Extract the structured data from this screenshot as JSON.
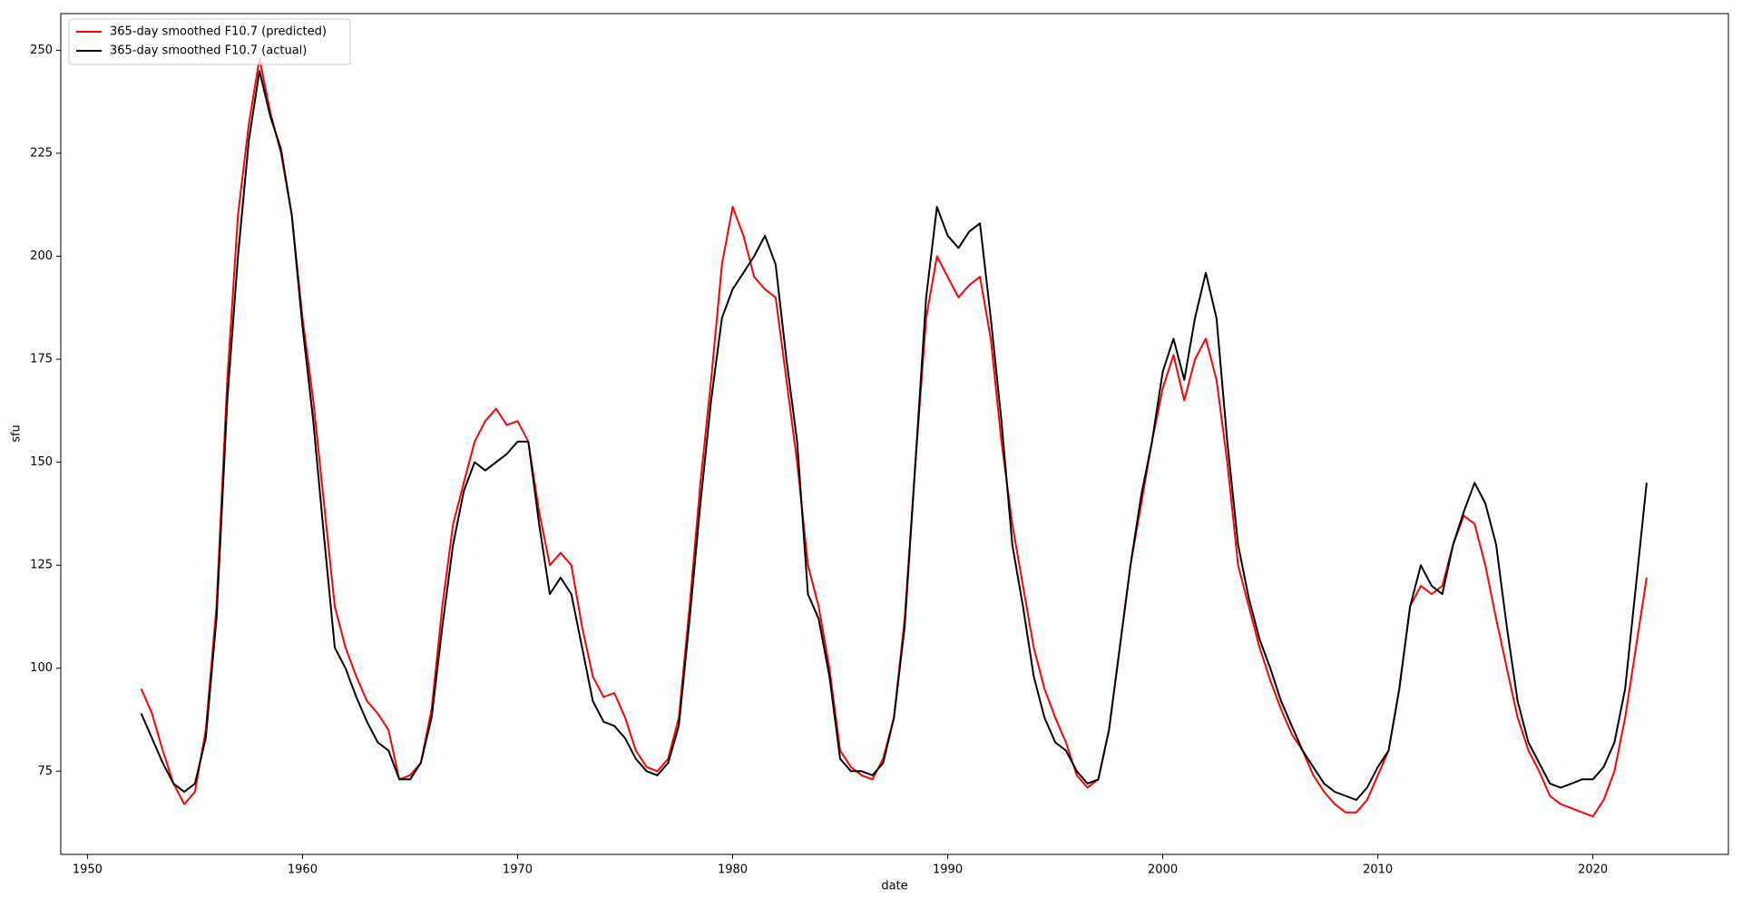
{
  "chart_data": {
    "type": "line",
    "xlabel": "date",
    "ylabel": "sfu",
    "xlim": [
      1948.76,
      2026.3
    ],
    "ylim": [
      54.8,
      258.9
    ],
    "xticks": [
      1950,
      1960,
      1970,
      1980,
      1990,
      2000,
      2010,
      2020
    ],
    "yticks": [
      75,
      100,
      125,
      150,
      175,
      200,
      225,
      250
    ],
    "legend": "upper left",
    "grid": false,
    "x": [
      1952.5,
      1953,
      1953.5,
      1954,
      1954.5,
      1955,
      1955.5,
      1956,
      1956.5,
      1957,
      1957.5,
      1958,
      1958.5,
      1959,
      1959.5,
      1960,
      1960.5,
      1961,
      1961.5,
      1962,
      1962.5,
      1963,
      1963.5,
      1964,
      1964.5,
      1965,
      1965.5,
      1966,
      1966.5,
      1967,
      1967.5,
      1968,
      1968.5,
      1969,
      1969.5,
      1970,
      1970.5,
      1971,
      1971.5,
      1972,
      1972.5,
      1973,
      1973.5,
      1974,
      1974.5,
      1975,
      1975.5,
      1976,
      1976.5,
      1977,
      1977.5,
      1978,
      1978.5,
      1979,
      1979.5,
      1980,
      1980.5,
      1981,
      1981.5,
      1982,
      1982.5,
      1983,
      1983.5,
      1984,
      1984.5,
      1985,
      1985.5,
      1986,
      1986.5,
      1987,
      1987.5,
      1988,
      1988.5,
      1989,
      1989.5,
      1990,
      1990.5,
      1991,
      1991.5,
      1992,
      1992.5,
      1993,
      1993.5,
      1994,
      1994.5,
      1995,
      1995.5,
      1996,
      1996.5,
      1997,
      1997.5,
      1998,
      1998.5,
      1999,
      1999.5,
      2000,
      2000.5,
      2001,
      2001.5,
      2002,
      2002.5,
      2003,
      2003.5,
      2004,
      2004.5,
      2005,
      2005.5,
      2006,
      2006.5,
      2007,
      2007.5,
      2008,
      2008.5,
      2009,
      2009.5,
      2010,
      2010.5,
      2011,
      2011.5,
      2012,
      2012.5,
      2013,
      2013.5,
      2014,
      2014.5,
      2015,
      2015.5,
      2016,
      2016.5,
      2017,
      2017.5,
      2018,
      2018.5,
      2019,
      2019.5,
      2020,
      2020.5,
      2021,
      2021.5,
      2022,
      2022.5
    ],
    "series": [
      {
        "name": "365-day smoothed F10.7 (predicted)",
        "color": "#ff0000",
        "values": [
          95,
          89,
          80,
          72,
          67,
          70,
          85,
          115,
          170,
          210,
          232,
          248,
          235,
          225,
          210,
          185,
          165,
          140,
          115,
          105,
          98,
          92,
          89,
          85,
          73,
          74,
          77,
          90,
          115,
          135,
          145,
          155,
          160,
          163,
          159,
          160,
          155,
          138,
          125,
          128,
          125,
          110,
          98,
          93,
          94,
          88,
          80,
          76,
          75,
          78,
          88,
          115,
          145,
          170,
          198,
          212,
          205,
          195,
          192,
          190,
          170,
          150,
          125,
          115,
          100,
          80,
          76,
          74,
          73,
          78,
          88,
          112,
          150,
          185,
          200,
          195,
          190,
          193,
          195,
          180,
          155,
          135,
          120,
          105,
          95,
          88,
          82,
          74,
          71,
          73,
          85,
          105,
          125,
          140,
          155,
          168,
          176,
          165,
          175,
          180,
          170,
          150,
          125,
          115,
          105,
          97,
          90,
          84,
          80,
          74,
          70,
          67,
          65,
          65,
          68,
          74,
          80,
          95,
          115,
          120,
          118,
          120,
          130,
          137,
          135,
          125,
          112,
          100,
          88,
          80,
          75,
          69,
          67,
          66,
          65,
          64,
          68,
          75,
          88,
          105,
          122
        ]
      },
      {
        "name": "365-day smoothed F10.7 (actual)",
        "color": "#000000",
        "values": [
          89,
          83,
          77,
          72,
          70,
          72,
          83,
          112,
          165,
          200,
          228,
          245,
          234,
          226,
          210,
          183,
          160,
          132,
          105,
          100,
          93,
          87,
          82,
          80,
          73,
          73,
          77,
          88,
          110,
          130,
          143,
          150,
          148,
          150,
          152,
          155,
          155,
          135,
          118,
          122,
          118,
          105,
          92,
          87,
          86,
          83,
          78,
          75,
          74,
          77,
          86,
          112,
          140,
          165,
          185,
          192,
          196,
          200,
          205,
          198,
          175,
          155,
          118,
          112,
          98,
          78,
          75,
          75,
          74,
          77,
          88,
          110,
          150,
          190,
          212,
          205,
          202,
          206,
          208,
          185,
          160,
          130,
          115,
          98,
          88,
          82,
          80,
          75,
          72,
          73,
          85,
          105,
          125,
          142,
          155,
          172,
          180,
          170,
          185,
          196,
          185,
          155,
          130,
          117,
          107,
          100,
          92,
          86,
          80,
          76,
          72,
          70,
          69,
          68,
          71,
          76,
          80,
          95,
          115,
          125,
          120,
          118,
          130,
          138,
          145,
          140,
          130,
          110,
          92,
          82,
          77,
          72,
          71,
          72,
          73,
          73,
          76,
          82,
          95,
          120,
          145
        ]
      }
    ]
  }
}
